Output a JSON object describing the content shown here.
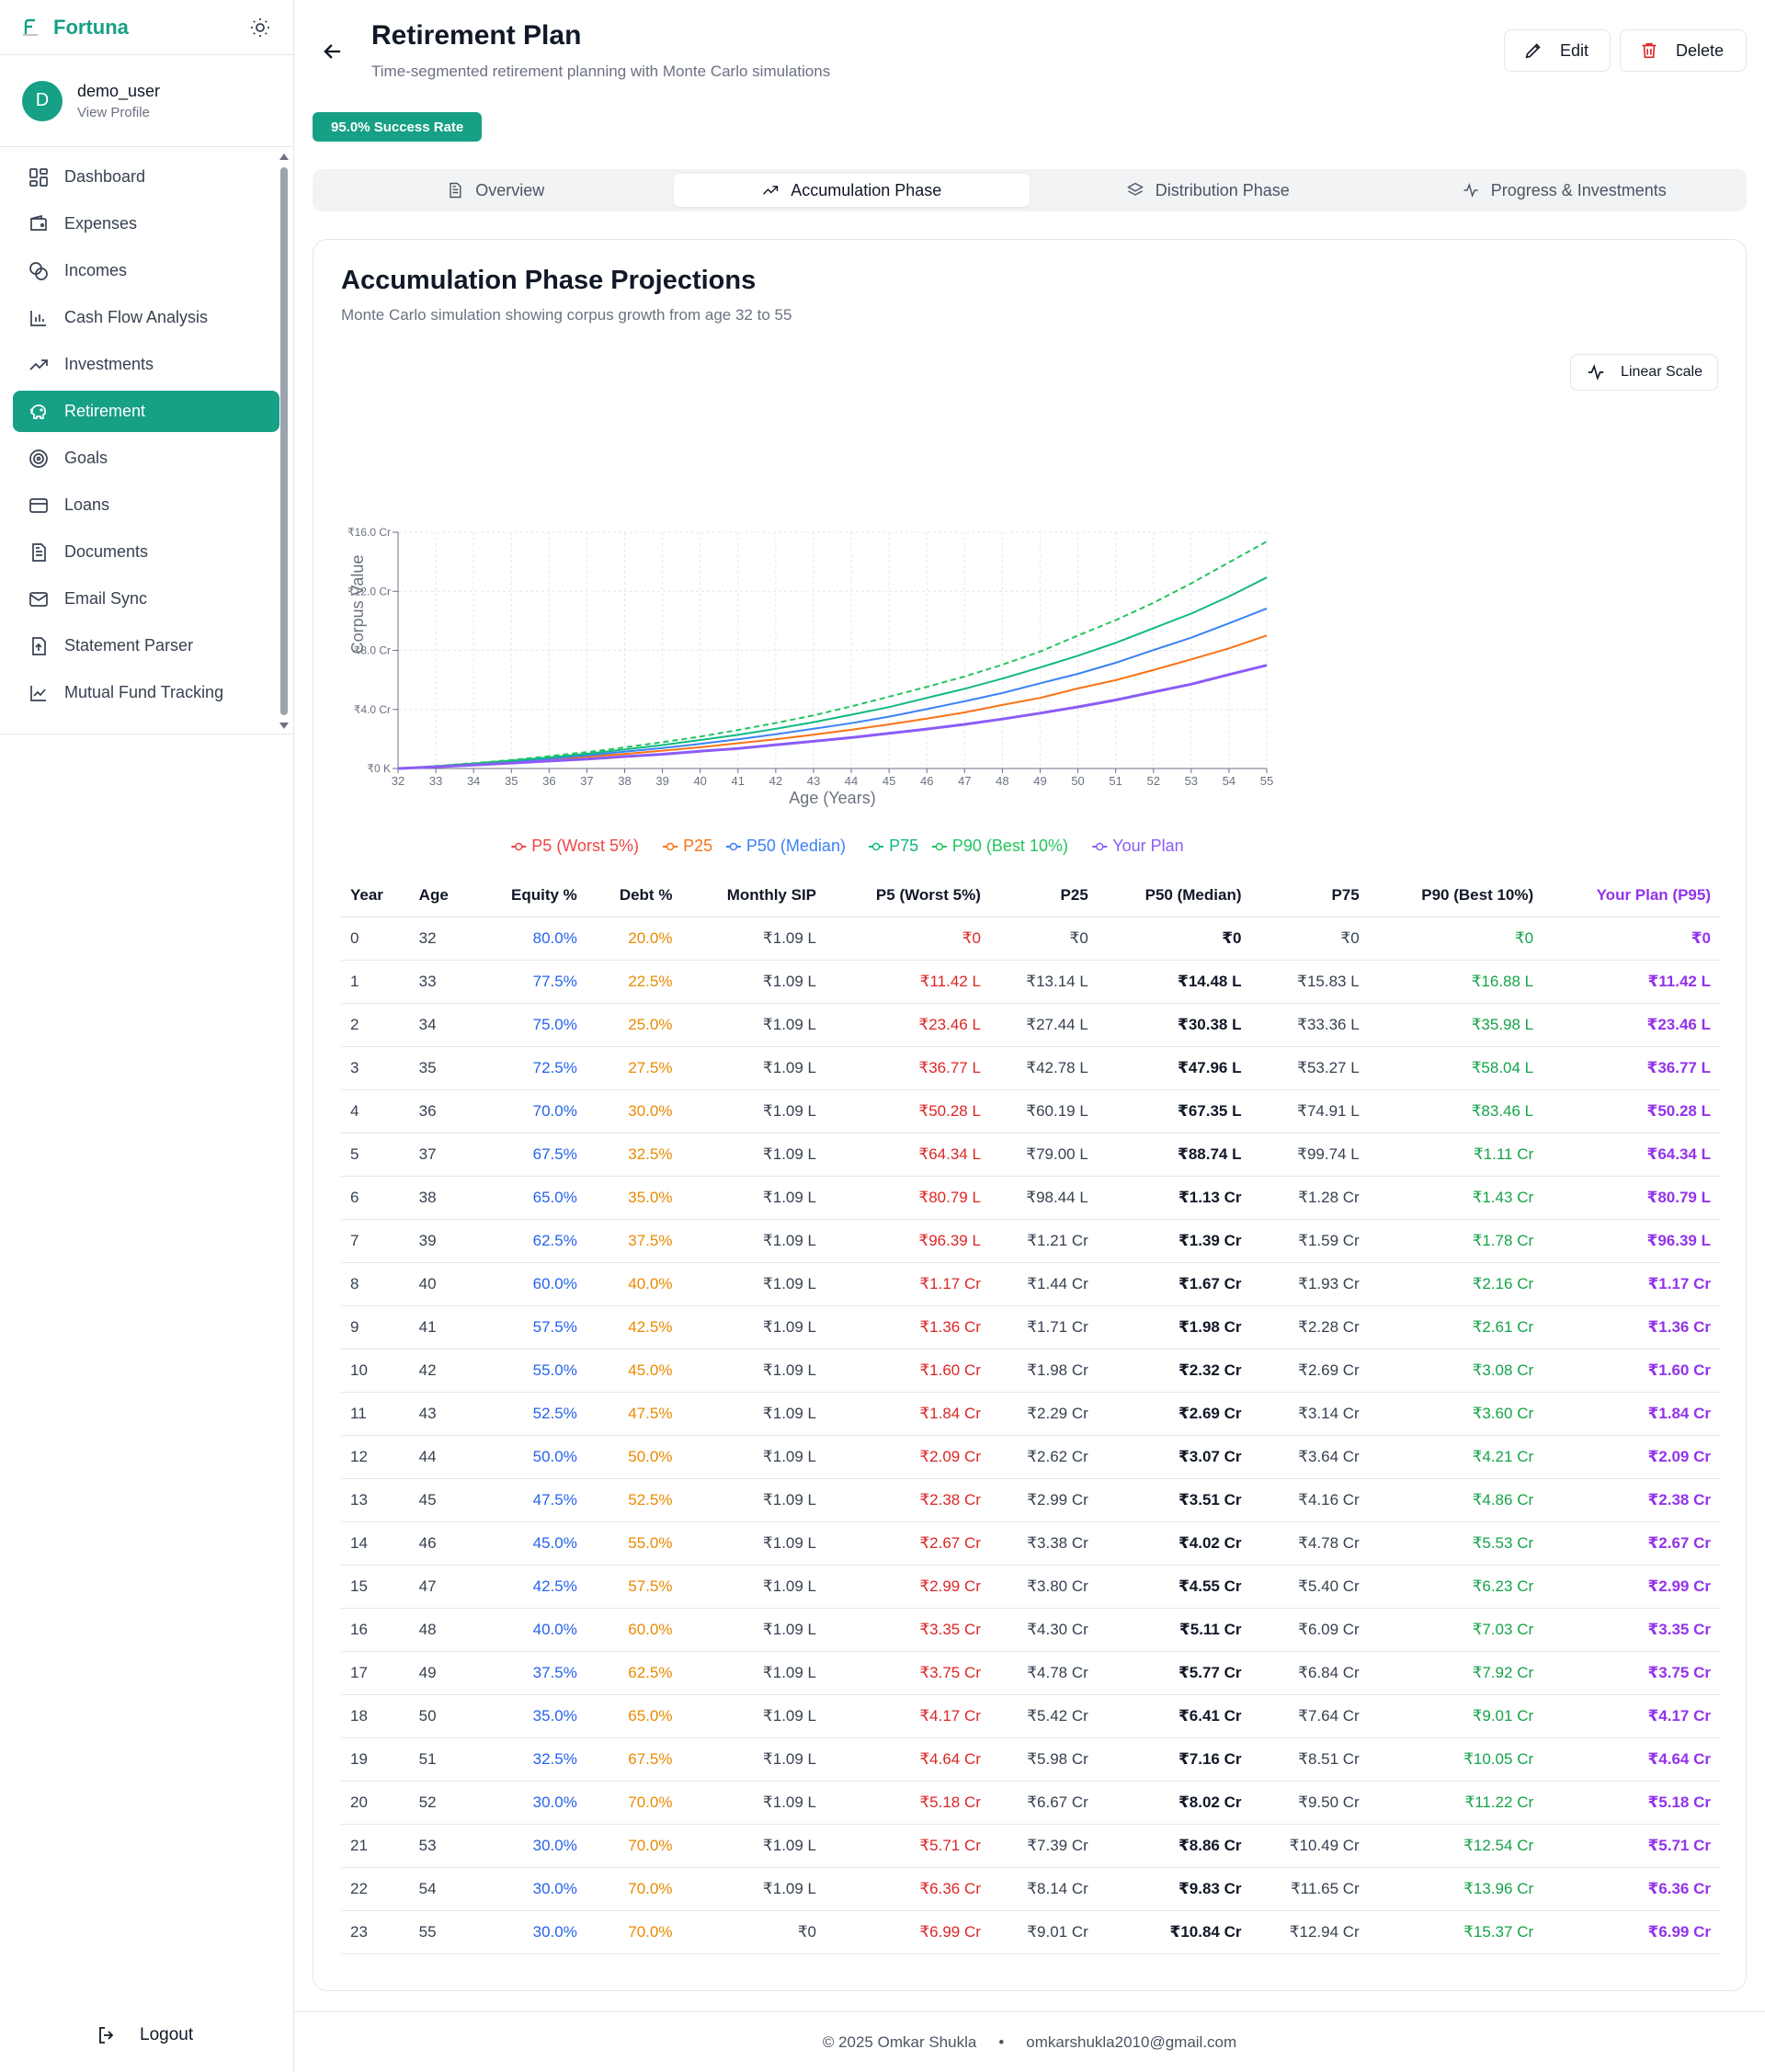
{
  "app": {
    "name": "Fortuna"
  },
  "user": {
    "initial": "D",
    "name": "demo_user",
    "view_profile": "View Profile"
  },
  "nav": [
    {
      "label": "Dashboard",
      "icon": "dashboard-icon"
    },
    {
      "label": "Expenses",
      "icon": "wallet-icon"
    },
    {
      "label": "Incomes",
      "icon": "coins-icon"
    },
    {
      "label": "Cash Flow Analysis",
      "icon": "bar-chart-icon"
    },
    {
      "label": "Investments",
      "icon": "trending-up-icon"
    },
    {
      "label": "Retirement",
      "icon": "piggy-bank-icon",
      "active": true
    },
    {
      "label": "Goals",
      "icon": "target-icon"
    },
    {
      "label": "Loans",
      "icon": "credit-card-icon"
    },
    {
      "label": "Documents",
      "icon": "document-icon"
    },
    {
      "label": "Email Sync",
      "icon": "mail-icon"
    },
    {
      "label": "Statement Parser",
      "icon": "file-upload-icon"
    },
    {
      "label": "Mutual Fund Tracking",
      "icon": "line-chart-icon"
    }
  ],
  "logout_label": "Logout",
  "header": {
    "title": "Retirement Plan",
    "subtitle": "Time-segmented retirement planning with Monte Carlo simulations",
    "edit_label": "Edit",
    "delete_label": "Delete",
    "badge": "95.0% Success Rate"
  },
  "tabs": [
    {
      "label": "Overview",
      "icon": "document-icon"
    },
    {
      "label": "Accumulation Phase",
      "icon": "trending-up-icon",
      "active": true
    },
    {
      "label": "Distribution Phase",
      "icon": "layers-icon"
    },
    {
      "label": "Progress & Investments",
      "icon": "activity-icon"
    }
  ],
  "card": {
    "title": "Accumulation Phase Projections",
    "subtitle": "Monte Carlo simulation showing corpus growth from age 32 to 55",
    "scale_button": "Linear Scale"
  },
  "colors": {
    "p5": "#ef4444",
    "p25": "#f97316",
    "p50": "#3b82f6",
    "p75": "#10b981",
    "p90": "#22c55e",
    "plan": "#8b5cf6",
    "accent": "#16a085"
  },
  "chart_data": {
    "type": "line",
    "xlabel": "Age (Years)",
    "ylabel": "Corpus Value",
    "ylim": [
      0,
      16
    ],
    "yticks": [
      "₹0 K",
      "₹4.0 Cr",
      "₹8.0 Cr",
      "₹12.0 Cr",
      "₹16.0 Cr"
    ],
    "grid": true,
    "legend_position": "bottom",
    "x": [
      32,
      33,
      34,
      35,
      36,
      37,
      38,
      39,
      40,
      41,
      42,
      43,
      44,
      45,
      46,
      47,
      48,
      49,
      50,
      51,
      52,
      53,
      54,
      55
    ],
    "series": [
      {
        "name": "P5 (Worst 5%)",
        "key": "p5",
        "values": [
          0,
          0.1142,
          0.2346,
          0.3677,
          0.5028,
          0.6434,
          0.8079,
          0.9639,
          1.17,
          1.36,
          1.6,
          1.84,
          2.09,
          2.38,
          2.67,
          2.99,
          3.35,
          3.75,
          4.17,
          4.64,
          5.18,
          5.71,
          6.36,
          6.99
        ]
      },
      {
        "name": "P25",
        "key": "p25",
        "values": [
          0,
          0.1314,
          0.2744,
          0.4278,
          0.6019,
          0.79,
          0.9844,
          1.21,
          1.44,
          1.71,
          1.98,
          2.29,
          2.62,
          2.99,
          3.38,
          3.8,
          4.3,
          4.78,
          5.42,
          5.98,
          6.67,
          7.39,
          8.14,
          9.01
        ]
      },
      {
        "name": "P50 (Median)",
        "key": "p50",
        "values": [
          0,
          0.1448,
          0.3038,
          0.4796,
          0.6735,
          0.8874,
          1.13,
          1.39,
          1.67,
          1.98,
          2.32,
          2.69,
          3.07,
          3.51,
          4.02,
          4.55,
          5.11,
          5.77,
          6.41,
          7.16,
          8.02,
          8.86,
          9.83,
          10.84
        ]
      },
      {
        "name": "P75",
        "key": "p75",
        "values": [
          0,
          0.1583,
          0.3336,
          0.5327,
          0.7491,
          0.9974,
          1.28,
          1.59,
          1.93,
          2.28,
          2.69,
          3.14,
          3.64,
          4.16,
          4.78,
          5.4,
          6.09,
          6.84,
          7.64,
          8.51,
          9.5,
          10.49,
          11.65,
          12.94
        ]
      },
      {
        "name": "P90 (Best 10%)",
        "key": "p90",
        "dashed": true,
        "values": [
          0,
          0.1688,
          0.3598,
          0.5804,
          0.8346,
          1.11,
          1.43,
          1.78,
          2.16,
          2.61,
          3.08,
          3.6,
          4.21,
          4.86,
          5.53,
          6.23,
          7.03,
          7.92,
          9.01,
          10.05,
          11.22,
          12.54,
          13.96,
          15.37
        ]
      },
      {
        "name": "Your Plan",
        "key": "plan",
        "bold": true,
        "values": [
          0,
          0.1142,
          0.2346,
          0.3677,
          0.5028,
          0.6434,
          0.8079,
          0.9639,
          1.17,
          1.36,
          1.6,
          1.84,
          2.09,
          2.38,
          2.67,
          2.99,
          3.35,
          3.75,
          4.17,
          4.64,
          5.18,
          5.71,
          6.36,
          6.99
        ]
      }
    ]
  },
  "table": {
    "headers": [
      "Year",
      "Age",
      "Equity %",
      "Debt %",
      "Monthly SIP",
      "P5 (Worst 5%)",
      "P25",
      "P50 (Median)",
      "P75",
      "P90 (Best 10%)",
      "Your Plan (P95)"
    ],
    "rows": [
      [
        "0",
        "32",
        "80.0%",
        "20.0%",
        "₹1.09 L",
        "₹0",
        "₹0",
        "₹0",
        "₹0",
        "₹0",
        "₹0"
      ],
      [
        "1",
        "33",
        "77.5%",
        "22.5%",
        "₹1.09 L",
        "₹11.42 L",
        "₹13.14 L",
        "₹14.48 L",
        "₹15.83 L",
        "₹16.88 L",
        "₹11.42 L"
      ],
      [
        "2",
        "34",
        "75.0%",
        "25.0%",
        "₹1.09 L",
        "₹23.46 L",
        "₹27.44 L",
        "₹30.38 L",
        "₹33.36 L",
        "₹35.98 L",
        "₹23.46 L"
      ],
      [
        "3",
        "35",
        "72.5%",
        "27.5%",
        "₹1.09 L",
        "₹36.77 L",
        "₹42.78 L",
        "₹47.96 L",
        "₹53.27 L",
        "₹58.04 L",
        "₹36.77 L"
      ],
      [
        "4",
        "36",
        "70.0%",
        "30.0%",
        "₹1.09 L",
        "₹50.28 L",
        "₹60.19 L",
        "₹67.35 L",
        "₹74.91 L",
        "₹83.46 L",
        "₹50.28 L"
      ],
      [
        "5",
        "37",
        "67.5%",
        "32.5%",
        "₹1.09 L",
        "₹64.34 L",
        "₹79.00 L",
        "₹88.74 L",
        "₹99.74 L",
        "₹1.11 Cr",
        "₹64.34 L"
      ],
      [
        "6",
        "38",
        "65.0%",
        "35.0%",
        "₹1.09 L",
        "₹80.79 L",
        "₹98.44 L",
        "₹1.13 Cr",
        "₹1.28 Cr",
        "₹1.43 Cr",
        "₹80.79 L"
      ],
      [
        "7",
        "39",
        "62.5%",
        "37.5%",
        "₹1.09 L",
        "₹96.39 L",
        "₹1.21 Cr",
        "₹1.39 Cr",
        "₹1.59 Cr",
        "₹1.78 Cr",
        "₹96.39 L"
      ],
      [
        "8",
        "40",
        "60.0%",
        "40.0%",
        "₹1.09 L",
        "₹1.17 Cr",
        "₹1.44 Cr",
        "₹1.67 Cr",
        "₹1.93 Cr",
        "₹2.16 Cr",
        "₹1.17 Cr"
      ],
      [
        "9",
        "41",
        "57.5%",
        "42.5%",
        "₹1.09 L",
        "₹1.36 Cr",
        "₹1.71 Cr",
        "₹1.98 Cr",
        "₹2.28 Cr",
        "₹2.61 Cr",
        "₹1.36 Cr"
      ],
      [
        "10",
        "42",
        "55.0%",
        "45.0%",
        "₹1.09 L",
        "₹1.60 Cr",
        "₹1.98 Cr",
        "₹2.32 Cr",
        "₹2.69 Cr",
        "₹3.08 Cr",
        "₹1.60 Cr"
      ],
      [
        "11",
        "43",
        "52.5%",
        "47.5%",
        "₹1.09 L",
        "₹1.84 Cr",
        "₹2.29 Cr",
        "₹2.69 Cr",
        "₹3.14 Cr",
        "₹3.60 Cr",
        "₹1.84 Cr"
      ],
      [
        "12",
        "44",
        "50.0%",
        "50.0%",
        "₹1.09 L",
        "₹2.09 Cr",
        "₹2.62 Cr",
        "₹3.07 Cr",
        "₹3.64 Cr",
        "₹4.21 Cr",
        "₹2.09 Cr"
      ],
      [
        "13",
        "45",
        "47.5%",
        "52.5%",
        "₹1.09 L",
        "₹2.38 Cr",
        "₹2.99 Cr",
        "₹3.51 Cr",
        "₹4.16 Cr",
        "₹4.86 Cr",
        "₹2.38 Cr"
      ],
      [
        "14",
        "46",
        "45.0%",
        "55.0%",
        "₹1.09 L",
        "₹2.67 Cr",
        "₹3.38 Cr",
        "₹4.02 Cr",
        "₹4.78 Cr",
        "₹5.53 Cr",
        "₹2.67 Cr"
      ],
      [
        "15",
        "47",
        "42.5%",
        "57.5%",
        "₹1.09 L",
        "₹2.99 Cr",
        "₹3.80 Cr",
        "₹4.55 Cr",
        "₹5.40 Cr",
        "₹6.23 Cr",
        "₹2.99 Cr"
      ],
      [
        "16",
        "48",
        "40.0%",
        "60.0%",
        "₹1.09 L",
        "₹3.35 Cr",
        "₹4.30 Cr",
        "₹5.11 Cr",
        "₹6.09 Cr",
        "₹7.03 Cr",
        "₹3.35 Cr"
      ],
      [
        "17",
        "49",
        "37.5%",
        "62.5%",
        "₹1.09 L",
        "₹3.75 Cr",
        "₹4.78 Cr",
        "₹5.77 Cr",
        "₹6.84 Cr",
        "₹7.92 Cr",
        "₹3.75 Cr"
      ],
      [
        "18",
        "50",
        "35.0%",
        "65.0%",
        "₹1.09 L",
        "₹4.17 Cr",
        "₹5.42 Cr",
        "₹6.41 Cr",
        "₹7.64 Cr",
        "₹9.01 Cr",
        "₹4.17 Cr"
      ],
      [
        "19",
        "51",
        "32.5%",
        "67.5%",
        "₹1.09 L",
        "₹4.64 Cr",
        "₹5.98 Cr",
        "₹7.16 Cr",
        "₹8.51 Cr",
        "₹10.05 Cr",
        "₹4.64 Cr"
      ],
      [
        "20",
        "52",
        "30.0%",
        "70.0%",
        "₹1.09 L",
        "₹5.18 Cr",
        "₹6.67 Cr",
        "₹8.02 Cr",
        "₹9.50 Cr",
        "₹11.22 Cr",
        "₹5.18 Cr"
      ],
      [
        "21",
        "53",
        "30.0%",
        "70.0%",
        "₹1.09 L",
        "₹5.71 Cr",
        "₹7.39 Cr",
        "₹8.86 Cr",
        "₹10.49 Cr",
        "₹12.54 Cr",
        "₹5.71 Cr"
      ],
      [
        "22",
        "54",
        "30.0%",
        "70.0%",
        "₹1.09 L",
        "₹6.36 Cr",
        "₹8.14 Cr",
        "₹9.83 Cr",
        "₹11.65 Cr",
        "₹13.96 Cr",
        "₹6.36 Cr"
      ],
      [
        "23",
        "55",
        "30.0%",
        "70.0%",
        "₹0",
        "₹6.99 Cr",
        "₹9.01 Cr",
        "₹10.84 Cr",
        "₹12.94 Cr",
        "₹15.37 Cr",
        "₹6.99 Cr"
      ]
    ]
  },
  "footer": {
    "copyright": "© 2025 Omkar Shukla",
    "separator": "•",
    "email": "omkarshukla2010@gmail.com"
  }
}
